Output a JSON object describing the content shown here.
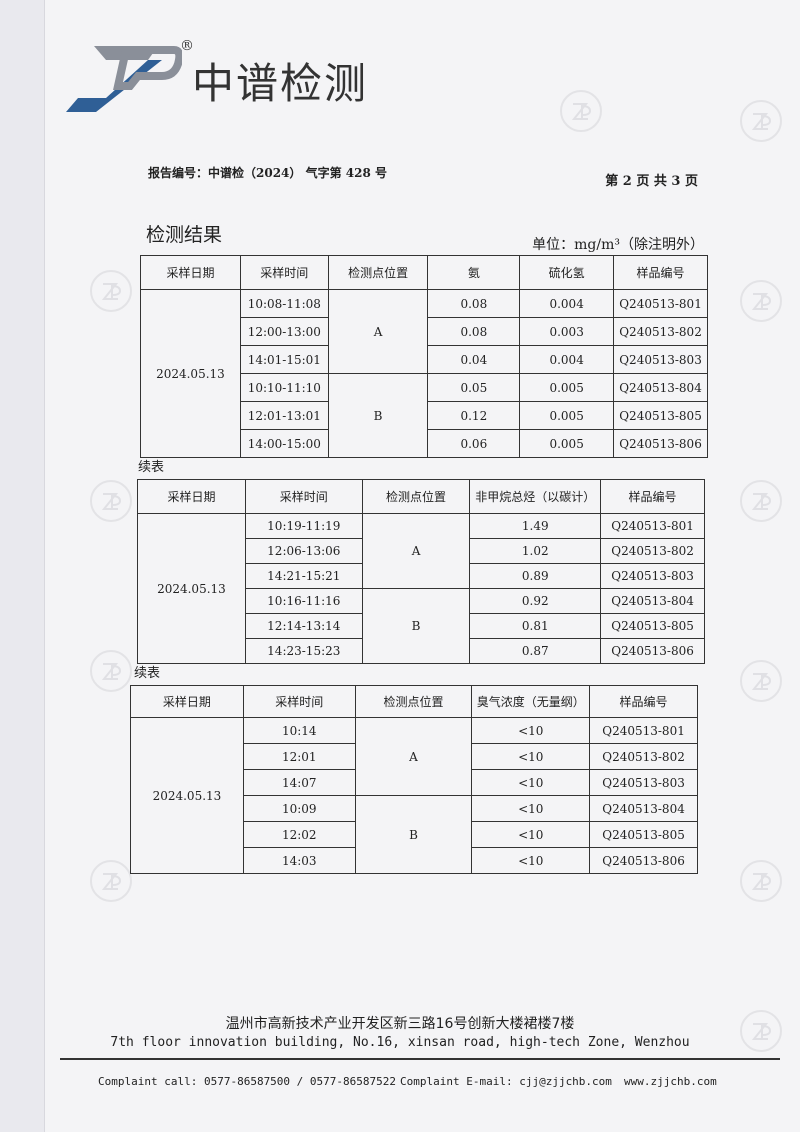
{
  "header": {
    "brand": "中谱检测",
    "registered": "®",
    "report_no": "报告编号：中谱检（2024） 气字第 428 号",
    "page_info": "第 2 页 共 3 页"
  },
  "section_title": "检测结果",
  "unit": "单位：mg/m³（除注明外）",
  "continued_label": "续表",
  "tables": [
    {
      "headers": [
        "采样日期",
        "采样时间",
        "检测点位置",
        "氨",
        "硫化氢",
        "样品编号"
      ],
      "date": "2024.05.13",
      "rows": [
        {
          "time": "10:08-11:08",
          "point": "A",
          "v1": "0.08",
          "v2": "0.004",
          "id": "Q240513-801"
        },
        {
          "time": "12:00-13:00",
          "point": "A",
          "v1": "0.08",
          "v2": "0.003",
          "id": "Q240513-802"
        },
        {
          "time": "14:01-15:01",
          "point": "A",
          "v1": "0.04",
          "v2": "0.004",
          "id": "Q240513-803"
        },
        {
          "time": "10:10-11:10",
          "point": "B",
          "v1": "0.05",
          "v2": "0.005",
          "id": "Q240513-804"
        },
        {
          "time": "12:01-13:01",
          "point": "B",
          "v1": "0.12",
          "v2": "0.005",
          "id": "Q240513-805"
        },
        {
          "time": "14:00-15:00",
          "point": "B",
          "v1": "0.06",
          "v2": "0.005",
          "id": "Q240513-806"
        }
      ]
    },
    {
      "headers": [
        "采样日期",
        "采样时间",
        "检测点位置",
        "非甲烷总烃（以碳计）",
        "样品编号"
      ],
      "date": "2024.05.13",
      "rows": [
        {
          "time": "10:19-11:19",
          "point": "A",
          "v1": "1.49",
          "id": "Q240513-801"
        },
        {
          "time": "12:06-13:06",
          "point": "A",
          "v1": "1.02",
          "id": "Q240513-802"
        },
        {
          "time": "14:21-15:21",
          "point": "A",
          "v1": "0.89",
          "id": "Q240513-803"
        },
        {
          "time": "10:16-11:16",
          "point": "B",
          "v1": "0.92",
          "id": "Q240513-804"
        },
        {
          "time": "12:14-13:14",
          "point": "B",
          "v1": "0.81",
          "id": "Q240513-805"
        },
        {
          "time": "14:23-15:23",
          "point": "B",
          "v1": "0.87",
          "id": "Q240513-806"
        }
      ]
    },
    {
      "headers": [
        "采样日期",
        "采样时间",
        "检测点位置",
        "臭气浓度（无量纲）",
        "样品编号"
      ],
      "date": "2024.05.13",
      "rows": [
        {
          "time": "10:14",
          "point": "A",
          "v1": "<10",
          "id": "Q240513-801"
        },
        {
          "time": "12:01",
          "point": "A",
          "v1": "<10",
          "id": "Q240513-802"
        },
        {
          "time": "14:07",
          "point": "A",
          "v1": "<10",
          "id": "Q240513-803"
        },
        {
          "time": "10:09",
          "point": "B",
          "v1": "<10",
          "id": "Q240513-804"
        },
        {
          "time": "12:02",
          "point": "B",
          "v1": "<10",
          "id": "Q240513-805"
        },
        {
          "time": "14:03",
          "point": "B",
          "v1": "<10",
          "id": "Q240513-806"
        }
      ]
    }
  ],
  "footer": {
    "address_cn": "温州市高新技术产业开发区新三路16号创新大楼裙楼7楼",
    "address_en": "7th floor innovation building, No.16, xinsan road, high-tech Zone, Wenzhou",
    "complaint_call": "Complaint call: 0577-86587500 / 0577-86587522",
    "complaint_email": "Complaint E-mail: cjj@zjjchb.com",
    "website": "www.zjjchb.com"
  },
  "colors": {
    "logo_blue": "#2f5f96",
    "logo_gray": "#8a8f99"
  }
}
